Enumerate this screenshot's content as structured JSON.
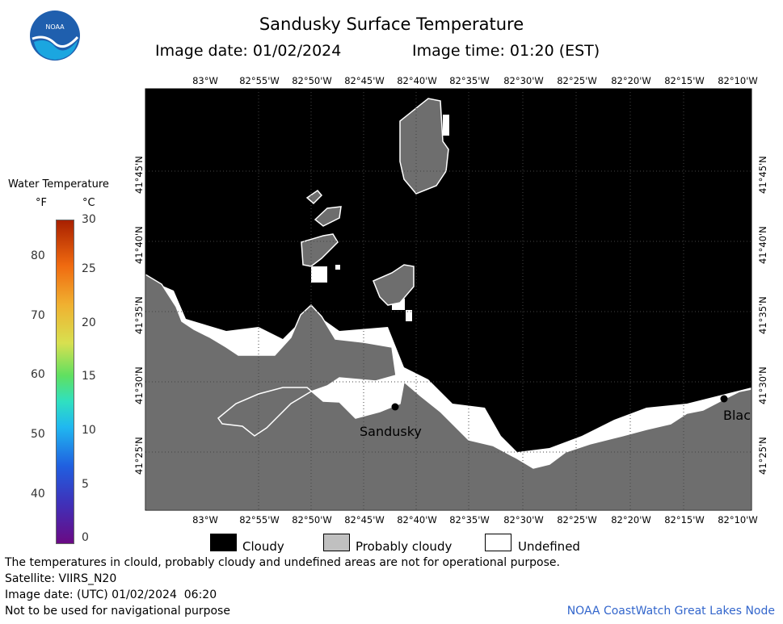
{
  "title": "Sandusky Surface Temperature",
  "image_date_label": "Image date: 01/02/2024",
  "image_time_label": "Image time: 01:20 (EST)",
  "logo_text": "NOAA",
  "colorbar": {
    "title": "Water Temperature",
    "unit_f": "°F",
    "unit_c": "°C",
    "f_ticks": [
      "40",
      "50",
      "60",
      "70",
      "80"
    ],
    "c_ticks": [
      "0",
      "5",
      "10",
      "15",
      "20",
      "25",
      "30"
    ]
  },
  "axes": {
    "lon_ticks": [
      "83°W",
      "82°55'W",
      "82°50'W",
      "82°45'W",
      "82°40'W",
      "82°35'W",
      "82°30'W",
      "82°25'W",
      "82°20'W",
      "82°15'W",
      "82°10'W"
    ],
    "lat_ticks": [
      "41°25'N",
      "41°30'N",
      "41°35'N",
      "41°40'N",
      "41°45'N"
    ]
  },
  "places": [
    {
      "name": "Sandusky"
    },
    {
      "name": "Blac"
    }
  ],
  "legend": [
    {
      "label": "Cloudy",
      "color": "#000000"
    },
    {
      "label": "Probably cloudy",
      "color": "#c0c0c0"
    },
    {
      "label": "Undefined",
      "color": "#ffffff"
    }
  ],
  "notes": {
    "disclaimer": "The temperatures in clould, probably cloudy and undefined areas are not for operational purpose.",
    "satellite": "Satellite: VIIRS_N20",
    "utc_date": "Image date: (UTC) 01/02/2024  06:20",
    "navigation": "Not to be used for navigational purpose",
    "credit": "NOAA CoastWatch Great Lakes Node"
  },
  "colors": {
    "land": "#6e6e6e",
    "cloud": "#000000",
    "credit": "#3366cc"
  }
}
